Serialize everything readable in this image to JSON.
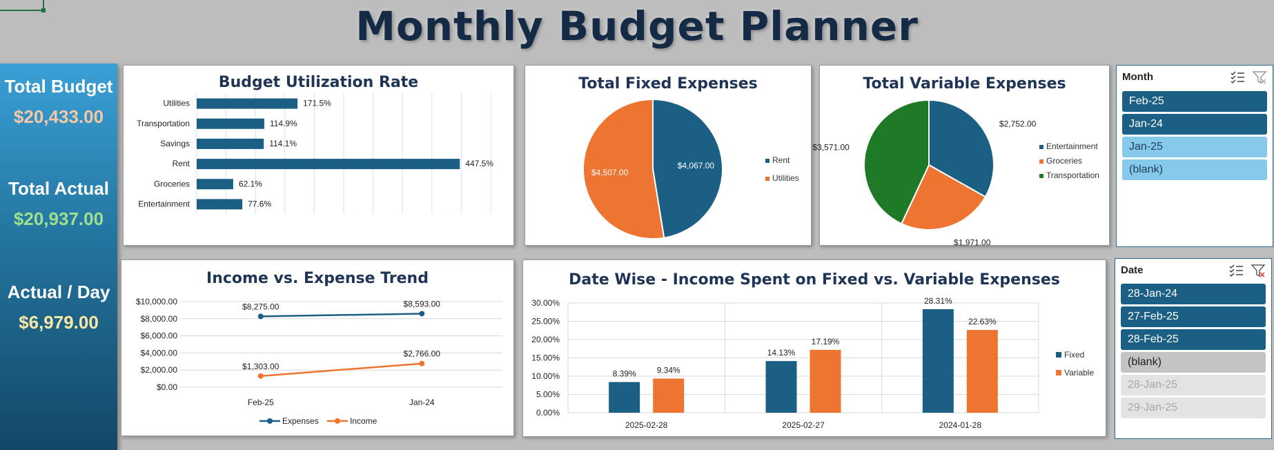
{
  "page_title": "Monthly Budget Planner",
  "kpis": [
    {
      "label": "Total Budget",
      "value": "$20,433.00",
      "color": "#f5c7a4"
    },
    {
      "label": "Total Actual",
      "value": "$20,937.00",
      "color": "#9fe08c"
    },
    {
      "label": "Actual / Day",
      "value": "$6,979.00",
      "color": "#fbe7a5"
    }
  ],
  "colors": {
    "blue": "#1b5f85",
    "orange": "#ed7431",
    "green": "#1e7a26"
  },
  "chart_data": [
    {
      "type": "bar",
      "orientation": "horizontal",
      "title": "Budget Utilization Rate",
      "categories": [
        "Utilities",
        "Transportation",
        "Savings",
        "Rent",
        "Groceries",
        "Entertainment"
      ],
      "values": [
        171.5,
        114.9,
        114.1,
        447.5,
        62.1,
        77.6
      ],
      "labels": [
        "171.5%",
        "114.9%",
        "114.1%",
        "447.5%",
        "62.1%",
        "77.6%"
      ],
      "xlim": [
        0,
        500
      ]
    },
    {
      "type": "pie",
      "title": "Total Fixed Expenses",
      "categories": [
        "Rent",
        "Utilities"
      ],
      "values": [
        4067,
        4507
      ],
      "labels": [
        "$4,067.00",
        "$4,507.00"
      ],
      "legend_position": "right"
    },
    {
      "type": "pie",
      "title": "Total Variable Expenses",
      "categories": [
        "Entertainment",
        "Groceries",
        "Transportation"
      ],
      "values": [
        2752,
        1971,
        3571
      ],
      "labels": [
        "$2,752.00",
        "$1,971.00",
        "$3,571.00"
      ],
      "legend_position": "right"
    },
    {
      "type": "line",
      "title": "Income vs. Expense Trend",
      "categories": [
        "Feb-25",
        "Jan-24"
      ],
      "series": [
        {
          "name": "Expenses",
          "values": [
            8275,
            8593
          ],
          "labels": [
            "$8,275.00",
            "$8,593.00"
          ]
        },
        {
          "name": "Income",
          "values": [
            1303,
            2766
          ],
          "labels": [
            "$1,303.00",
            "$2,766.00"
          ]
        }
      ],
      "ylim": [
        0,
        10000
      ],
      "yticks": [
        "$0.00",
        "$2,000.00",
        "$4,000.00",
        "$6,000.00",
        "$8,000.00",
        "$10,000.00"
      ],
      "legend_position": "bottom"
    },
    {
      "type": "bar",
      "title": "Date Wise - Income Spent on Fixed vs. Variable Expenses",
      "categories": [
        "2025-02-28",
        "2025-02-27",
        "2024-01-28"
      ],
      "series": [
        {
          "name": "Fixed",
          "values": [
            8.39,
            14.13,
            28.31
          ],
          "labels": [
            "8.39%",
            "14.13%",
            "28.31%"
          ]
        },
        {
          "name": "Variable",
          "values": [
            9.34,
            17.19,
            22.63
          ],
          "labels": [
            "9.34%",
            "17.19%",
            "22.63%"
          ]
        }
      ],
      "ylim": [
        0,
        30
      ],
      "yticks": [
        "0.00%",
        "5.00%",
        "10.00%",
        "15.00%",
        "20.00%",
        "25.00%",
        "30.00%"
      ],
      "legend_position": "right"
    }
  ],
  "slicers": {
    "month": {
      "header": "Month",
      "items": [
        {
          "label": "Feb-25",
          "state": "selected"
        },
        {
          "label": "Jan-24",
          "state": "selected"
        },
        {
          "label": "Jan-25",
          "state": "available"
        },
        {
          "label": "(blank)",
          "state": "available"
        }
      ]
    },
    "date": {
      "header": "Date",
      "items": [
        {
          "label": "28-Jan-24",
          "state": "selected"
        },
        {
          "label": "27-Feb-25",
          "state": "selected"
        },
        {
          "label": "28-Feb-25",
          "state": "selected"
        },
        {
          "label": "(blank)",
          "state": "blank"
        },
        {
          "label": "28-Jan-25",
          "state": "nodata"
        },
        {
          "label": "29-Jan-25",
          "state": "nodata"
        }
      ]
    }
  }
}
